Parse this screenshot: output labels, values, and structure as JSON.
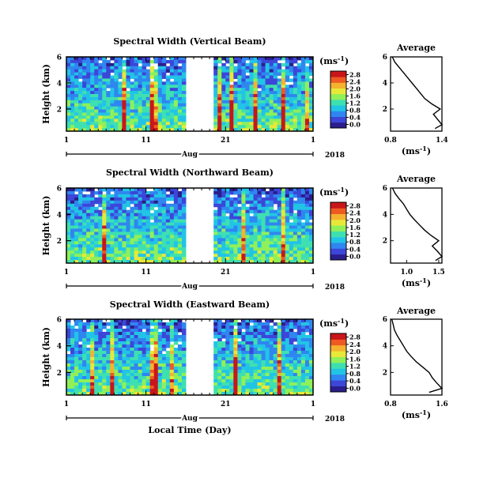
{
  "figure": {
    "xlabel": "Local Time (Day)",
    "month_label": "Aug",
    "year_label": "2018",
    "colorbar_unit": "(ms",
    "colorbar_unit_sup": "-1",
    "colorbar_unit_close": ")",
    "average_title": "Average",
    "height_label": "Height (km)"
  },
  "colors": {
    "colormap": [
      "#2a1e8c",
      "#3c46d8",
      "#2f86f0",
      "#22c4e6",
      "#3fe0b0",
      "#8ff05a",
      "#e8e83a",
      "#f5b22e",
      "#ee5a22",
      "#c8161a"
    ]
  },
  "chart_data": [
    {
      "type": "heatmap",
      "title": "Spectral Width (Vertical Beam)",
      "ylabel": "Height (km)",
      "x_tick_labels": [
        "1",
        "11",
        "21",
        "1"
      ],
      "x_ticks_day": [
        1,
        11,
        21,
        32
      ],
      "xlim": [
        1,
        32
      ],
      "y_tick_labels": [
        "6",
        "4",
        "2"
      ],
      "y_ticks": [
        6,
        4,
        2
      ],
      "ylim": [
        0.3,
        6
      ],
      "data_gap_days": [
        16,
        19.5
      ],
      "colorbar": {
        "ticks": [
          "2.8",
          "2.4",
          "2.0",
          "1.6",
          "1.2",
          "0.8",
          "0.4",
          "0.0"
        ],
        "range": [
          0.0,
          2.8
        ]
      },
      "average_profile": {
        "xlabel_ticks": [
          "0.8",
          "1.4"
        ],
        "xlim": [
          0.8,
          1.4
        ],
        "y_ticks": [
          "6",
          "4",
          "2"
        ],
        "height_km": [
          6.0,
          5.6,
          5.2,
          4.8,
          4.4,
          4.0,
          3.6,
          3.2,
          2.8,
          2.4,
          2.0,
          1.6,
          1.2,
          0.8,
          0.5
        ],
        "value_ms": [
          0.82,
          0.85,
          0.9,
          0.95,
          1.0,
          1.05,
          1.1,
          1.15,
          1.2,
          1.28,
          1.38,
          1.3,
          1.35,
          1.4,
          1.32
        ]
      }
    },
    {
      "type": "heatmap",
      "title": "Spectral Width (Northward Beam)",
      "ylabel": "Height (km)",
      "x_tick_labels": [
        "1",
        "11",
        "21",
        "1"
      ],
      "x_ticks_day": [
        1,
        11,
        21,
        32
      ],
      "xlim": [
        1,
        32
      ],
      "y_tick_labels": [
        "6",
        "4",
        "2"
      ],
      "y_ticks": [
        6,
        4,
        2
      ],
      "ylim": [
        0.3,
        6
      ],
      "data_gap_days": [
        16,
        19.5
      ],
      "colorbar": {
        "ticks": [
          "2.8",
          "2.4",
          "2.0",
          "1.6",
          "1.2",
          "0.8",
          "0.4",
          "0.0"
        ],
        "range": [
          0.0,
          2.8
        ]
      },
      "average_profile": {
        "xlabel_ticks": [
          "1.0",
          "1.5"
        ],
        "xlim": [
          0.75,
          1.55
        ],
        "y_ticks": [
          "6",
          "4",
          "2"
        ],
        "height_km": [
          6.0,
          5.6,
          5.2,
          4.8,
          4.4,
          4.0,
          3.6,
          3.2,
          2.8,
          2.4,
          2.0,
          1.6,
          1.2,
          0.8,
          0.5
        ],
        "value_ms": [
          0.78,
          0.82,
          0.88,
          0.95,
          1.0,
          1.05,
          1.12,
          1.2,
          1.28,
          1.38,
          1.5,
          1.4,
          1.48,
          1.55,
          1.45
        ]
      }
    },
    {
      "type": "heatmap",
      "title": "Spectral Width (Eastward Beam)",
      "ylabel": "Height (km)",
      "x_tick_labels": [
        "1",
        "11",
        "21",
        "1"
      ],
      "x_ticks_day": [
        1,
        11,
        21,
        32
      ],
      "xlim": [
        1,
        32
      ],
      "y_tick_labels": [
        "6",
        "4",
        "2"
      ],
      "y_ticks": [
        6,
        4,
        2
      ],
      "ylim": [
        0.3,
        6
      ],
      "data_gap_days": [
        16,
        19.5
      ],
      "colorbar": {
        "ticks": [
          "2.8",
          "2.4",
          "2.0",
          "1.6",
          "1.2",
          "0.8",
          "0.4",
          "0.0"
        ],
        "range": [
          0.0,
          2.8
        ]
      },
      "average_profile": {
        "xlabel_ticks": [
          "0.8",
          "1.6"
        ],
        "xlim": [
          0.8,
          1.6
        ],
        "y_ticks": [
          "6",
          "4",
          "2"
        ],
        "height_km": [
          6.0,
          5.6,
          5.2,
          4.8,
          4.4,
          4.0,
          3.6,
          3.2,
          2.8,
          2.4,
          2.0,
          1.6,
          1.2,
          0.8,
          0.5
        ],
        "value_ms": [
          0.82,
          0.84,
          0.86,
          0.9,
          0.95,
          1.0,
          1.05,
          1.12,
          1.2,
          1.3,
          1.4,
          1.45,
          1.52,
          1.6,
          1.4
        ]
      }
    }
  ]
}
